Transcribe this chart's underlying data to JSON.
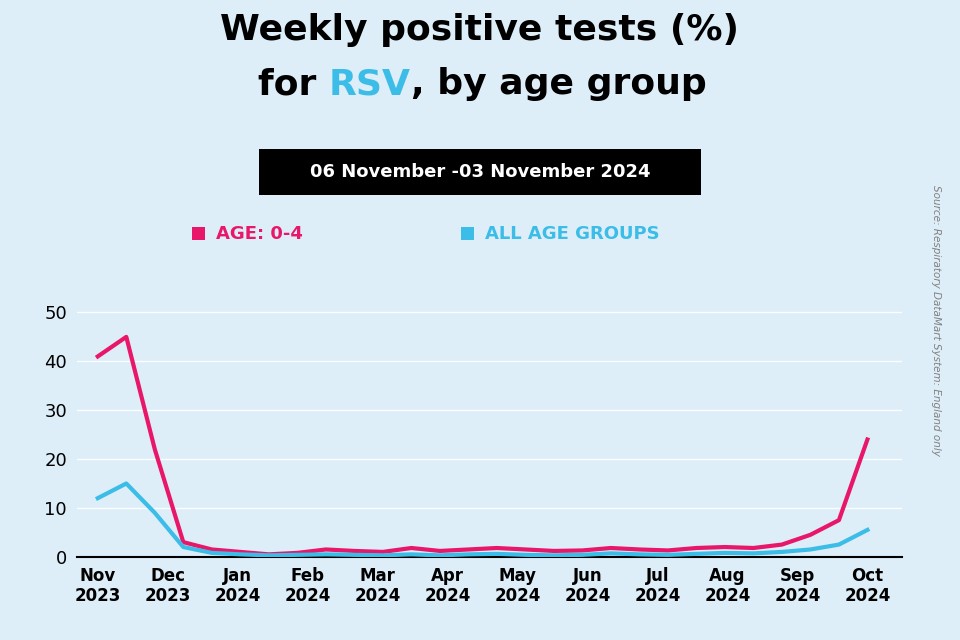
{
  "title_line1": "Weekly positive tests (%)",
  "title_line2_pre": "for ",
  "title_rsv": "RSV",
  "title_line2_post": ", by age group",
  "date_label": "06 November -03 November 2024",
  "source_text": "Source: Respiratory DataMart System: England only",
  "ylim": [
    0,
    55
  ],
  "yticks": [
    0,
    10,
    20,
    30,
    40,
    50
  ],
  "x_labels": [
    "Nov\n2023",
    "Dec\n2023",
    "Jan\n2024",
    "Feb\n2024",
    "Mar\n2024",
    "Apr\n2024",
    "May\n2024",
    "Jun\n2024",
    "Jul\n2024",
    "Aug\n2024",
    "Sep\n2024",
    "Oct\n2024"
  ],
  "age04_color": "#E8176A",
  "all_ages_color": "#3BBDE8",
  "background_color": "#DDEEF8",
  "age04_data": [
    41,
    45,
    22,
    3,
    1.5,
    1.0,
    0.5,
    0.8,
    1.5,
    1.2,
    1.0,
    1.8,
    1.2,
    1.5,
    1.8,
    1.5,
    1.2,
    1.3,
    1.8,
    1.5,
    1.3,
    1.8,
    2.0,
    1.8,
    2.5,
    4.5,
    7.5,
    24
  ],
  "all_ages_data": [
    12,
    15,
    9,
    2,
    0.8,
    0.5,
    0.3,
    0.4,
    0.5,
    0.4,
    0.3,
    0.5,
    0.3,
    0.5,
    0.6,
    0.4,
    0.3,
    0.4,
    0.7,
    0.5,
    0.4,
    0.6,
    0.8,
    0.7,
    1.0,
    1.5,
    2.5,
    5.5
  ],
  "legend_age04_label": "AGE: 0-4",
  "legend_all_label": "ALL AGE GROUPS",
  "rsv_color": "#3BBDE8",
  "title_fontsize": 26,
  "date_fontsize": 13,
  "legend_fontsize": 13,
  "axis_tick_fontsize": 12
}
